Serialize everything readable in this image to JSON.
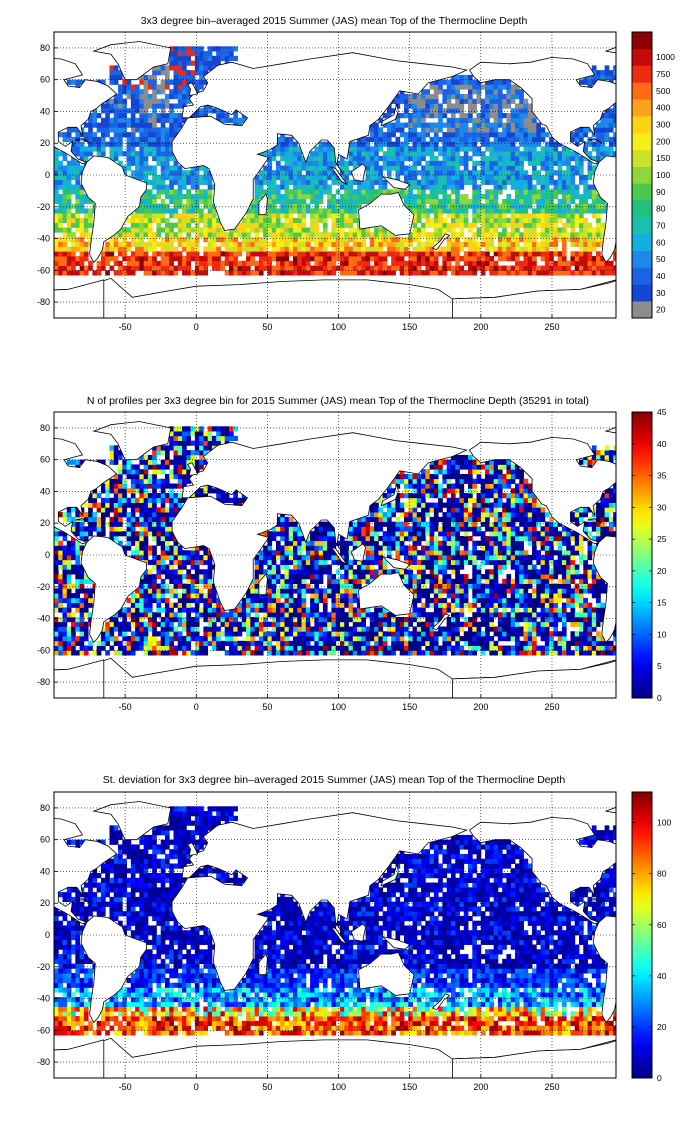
{
  "panels": [
    {
      "title": "3x3 degree bin–averaged 2015 Summer (JAS) mean Top of the Thermocline Depth",
      "map_kind": "mean_depth",
      "x_ticks": [
        "-50",
        "0",
        "50",
        "100",
        "150",
        "200",
        "250"
      ],
      "y_ticks": [
        "80",
        "60",
        "40",
        "20",
        "0",
        "-20",
        "-40",
        "-60",
        "-80"
      ],
      "colorbar": {
        "type": "discrete",
        "labels": [
          "20",
          "30",
          "40",
          "50",
          "60",
          "70",
          "80",
          "90",
          "100",
          "150",
          "200",
          "300",
          "400",
          "500",
          "750",
          "1000"
        ],
        "colors": [
          "#8c8c8c",
          "#1546d2",
          "#1a63e6",
          "#1c88e8",
          "#15aee0",
          "#1bbfb0",
          "#22c080",
          "#4cc94c",
          "#8ed63a",
          "#cce22a",
          "#f6ee18",
          "#ffd21a",
          "#ffa21a",
          "#ff6a14",
          "#f02a10",
          "#c40a0a",
          "#8a0000"
        ]
      }
    },
    {
      "title": "N of profiles per 3x3 degree bin for 2015 Summer (JAS) mean Top of the Thermocline Depth  (35291 in total)",
      "map_kind": "profile_count",
      "x_ticks": [
        "-50",
        "0",
        "50",
        "100",
        "150",
        "200",
        "250"
      ],
      "y_ticks": [
        "80",
        "60",
        "40",
        "20",
        "0",
        "-20",
        "-40",
        "-60",
        "-80"
      ],
      "colorbar": {
        "type": "continuous",
        "labels": [
          "0",
          "5",
          "10",
          "15",
          "20",
          "25",
          "30",
          "35",
          "40",
          "45"
        ],
        "range": [
          0,
          45
        ]
      }
    },
    {
      "title": "St. deviation for 3x3 degree bin–averaged 2015 Summer (JAS) mean Top of the Thermocline Depth",
      "map_kind": "std_dev",
      "x_ticks": [
        "-50",
        "0",
        "50",
        "100",
        "150",
        "200",
        "250"
      ],
      "y_ticks": [
        "80",
        "60",
        "40",
        "20",
        "0",
        "-20",
        "-40",
        "-60",
        "-80"
      ],
      "colorbar": {
        "type": "continuous",
        "labels": [
          "0",
          "20",
          "40",
          "60",
          "80",
          "100"
        ],
        "range": [
          0,
          112
        ]
      }
    }
  ],
  "axes": {
    "xlim": [
      -100,
      295
    ],
    "ylim": [
      -90,
      90
    ],
    "bin_size_degrees": 3,
    "grid": true,
    "grid_style": "dotted"
  },
  "colors": {
    "land": "#ffffff",
    "coast": "#000000",
    "no_data_gray": "#8c8c8c",
    "jet_low": "#00008f",
    "jet_high": "#800000"
  }
}
